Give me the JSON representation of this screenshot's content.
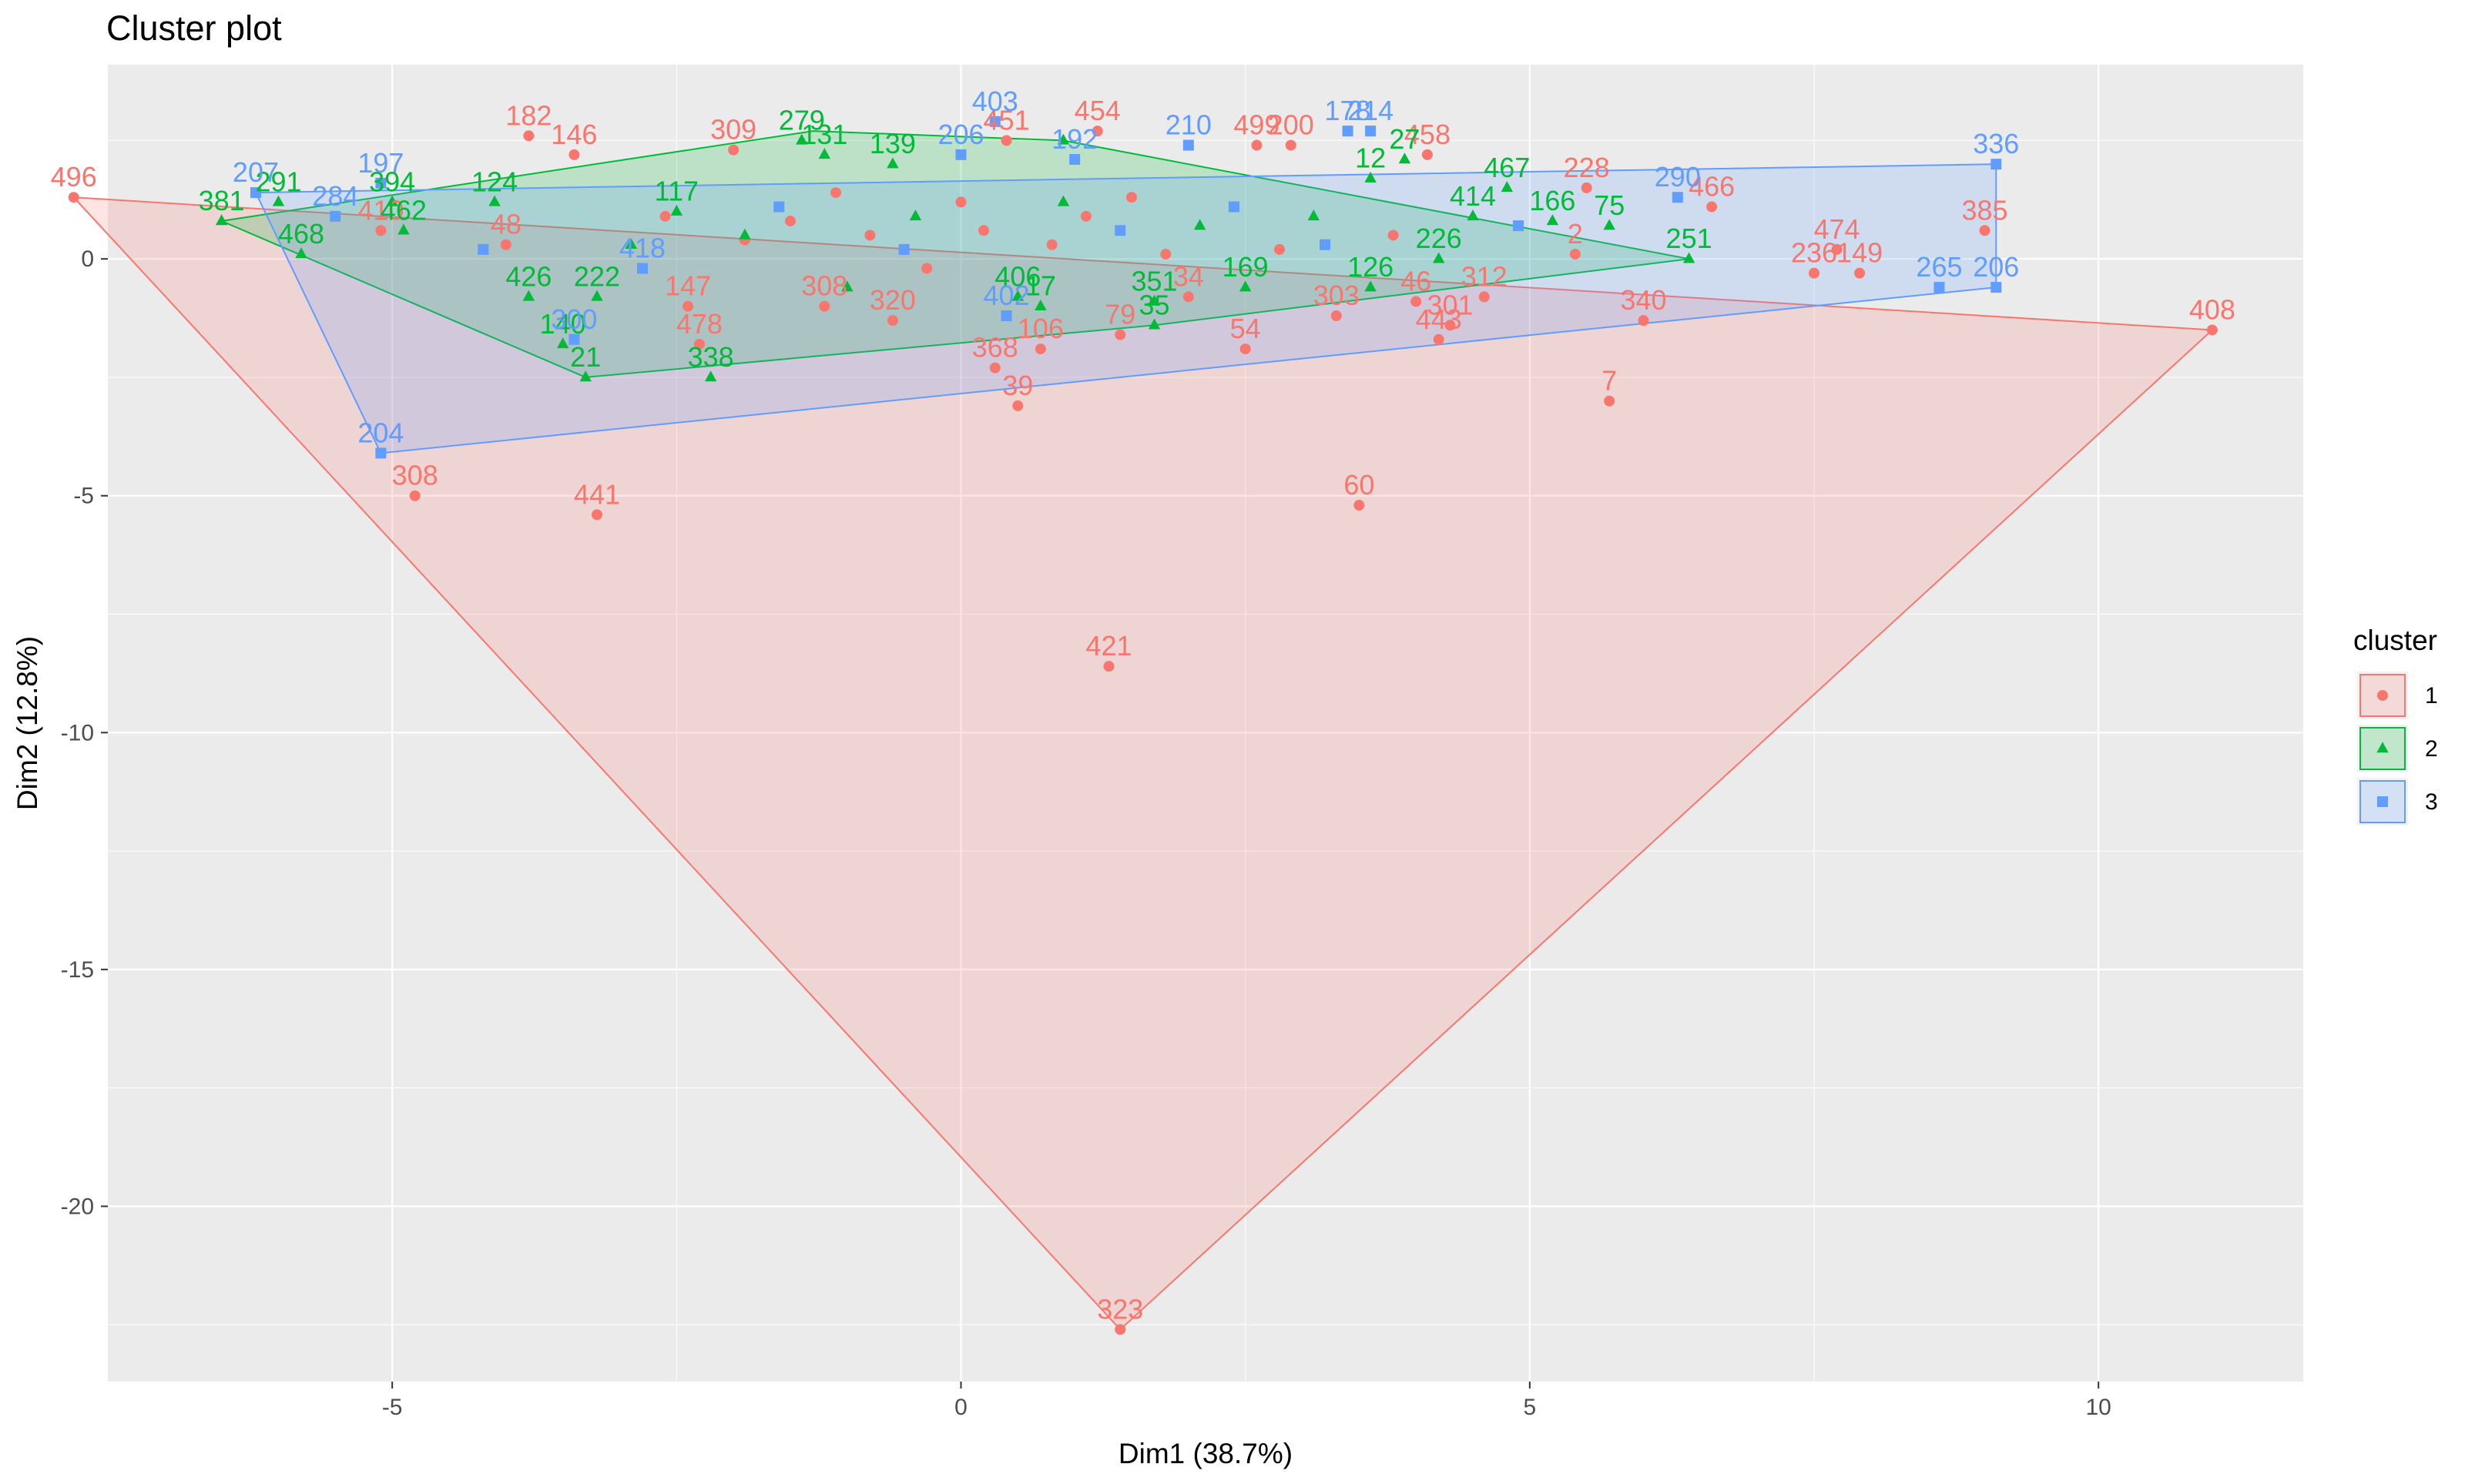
{
  "chart_data": {
    "type": "scatter",
    "title": "Cluster plot",
    "xlabel": "Dim1 (38.7%)",
    "ylabel": "Dim2 (12.8%)",
    "xlim": [
      -7.5,
      11.8
    ],
    "ylim": [
      -23.7,
      4.1
    ],
    "xticks": [
      -5,
      0,
      5,
      10
    ],
    "yticks": [
      0,
      -5,
      -10,
      -15,
      -20
    ],
    "legend": {
      "title": "cluster",
      "position": "right"
    },
    "series": [
      {
        "name": "1",
        "color": "#F8766D",
        "marker": "circle",
        "hull": [
          [
            -7.8,
            1.3
          ],
          [
            11.0,
            -1.5
          ],
          [
            1.4,
            -22.6
          ]
        ],
        "points": [
          {
            "x": -7.8,
            "y": 1.3,
            "label": "496"
          },
          {
            "x": -4.8,
            "y": -5.0,
            "label": "308"
          },
          {
            "x": -3.2,
            "y": -5.4,
            "label": "441"
          },
          {
            "x": 1.3,
            "y": -8.6,
            "label": "421"
          },
          {
            "x": 3.5,
            "y": -5.2,
            "label": "60"
          },
          {
            "x": 11.0,
            "y": -1.5,
            "label": "408"
          },
          {
            "x": 5.7,
            "y": -3.0,
            "label": "7"
          },
          {
            "x": 6.0,
            "y": -1.3,
            "label": "340"
          },
          {
            "x": 1.4,
            "y": -22.6,
            "label": "323"
          },
          {
            "x": 7.7,
            "y": 0.2,
            "label": "474"
          },
          {
            "x": 7.9,
            "y": -0.3,
            "label": "149"
          },
          {
            "x": 7.5,
            "y": -0.3,
            "label": "236"
          },
          {
            "x": 9.0,
            "y": 0.6,
            "label": "385"
          },
          {
            "x": 6.6,
            "y": 1.1,
            "label": "466"
          },
          {
            "x": 5.5,
            "y": 1.5,
            "label": "228"
          },
          {
            "x": 5.4,
            "y": 0.1,
            "label": "2"
          },
          {
            "x": 3.3,
            "y": -1.2,
            "label": "303"
          },
          {
            "x": 2.5,
            "y": -1.9,
            "label": "54"
          },
          {
            "x": 1.4,
            "y": -1.6,
            "label": "79"
          },
          {
            "x": 0.7,
            "y": -1.9,
            "label": "106"
          },
          {
            "x": 0.3,
            "y": -2.3,
            "label": "368"
          },
          {
            "x": 0.5,
            "y": -3.1,
            "label": "39"
          },
          {
            "x": 4.3,
            "y": -1.4,
            "label": "301"
          },
          {
            "x": 4.6,
            "y": -0.8,
            "label": "312"
          },
          {
            "x": 4.2,
            "y": -1.7,
            "label": "443"
          },
          {
            "x": 0.4,
            "y": 2.5,
            "label": "451"
          },
          {
            "x": 1.2,
            "y": 2.7,
            "label": "454"
          },
          {
            "x": -3.8,
            "y": 2.6,
            "label": "182"
          },
          {
            "x": -3.4,
            "y": 2.2,
            "label": "146"
          },
          {
            "x": -2.0,
            "y": 2.3,
            "label": "309"
          },
          {
            "x": 2.6,
            "y": 2.4,
            "label": "499"
          },
          {
            "x": 2.9,
            "y": 2.4,
            "label": "200"
          },
          {
            "x": 4.1,
            "y": 2.2,
            "label": "458"
          },
          {
            "x": -2.3,
            "y": -1.8,
            "label": "478"
          },
          {
            "x": -2.4,
            "y": -1.0,
            "label": "147"
          },
          {
            "x": -1.2,
            "y": -1.0,
            "label": "308"
          },
          {
            "x": -0.6,
            "y": -1.3,
            "label": "320"
          },
          {
            "x": 2.0,
            "y": -0.8,
            "label": "34"
          },
          {
            "x": 4.0,
            "y": -0.9,
            "label": "46"
          },
          {
            "x": -5.1,
            "y": 0.6,
            "label": "410"
          },
          {
            "x": -4.0,
            "y": 0.3,
            "label": "48"
          },
          {
            "x": -1.5,
            "y": 0.8,
            "label": ""
          },
          {
            "x": -0.8,
            "y": 0.5,
            "label": ""
          },
          {
            "x": 0.2,
            "y": 0.6,
            "label": ""
          },
          {
            "x": 0.8,
            "y": 0.3,
            "label": ""
          },
          {
            "x": 1.1,
            "y": 0.9,
            "label": ""
          },
          {
            "x": -1.9,
            "y": 0.4,
            "label": ""
          },
          {
            "x": 2.8,
            "y": 0.2,
            "label": ""
          },
          {
            "x": 3.8,
            "y": 0.5,
            "label": ""
          },
          {
            "x": -2.6,
            "y": 0.9,
            "label": ""
          },
          {
            "x": 0.0,
            "y": 1.2,
            "label": ""
          },
          {
            "x": 1.8,
            "y": 0.1,
            "label": ""
          },
          {
            "x": -0.3,
            "y": -0.2,
            "label": ""
          },
          {
            "x": -1.1,
            "y": 1.4,
            "label": ""
          },
          {
            "x": 1.5,
            "y": 1.3,
            "label": ""
          }
        ]
      },
      {
        "name": "2",
        "color": "#00BA38",
        "marker": "triangle",
        "hull": [
          [
            -6.5,
            0.8
          ],
          [
            -3.3,
            -2.5
          ],
          [
            1.7,
            -1.4
          ],
          [
            6.4,
            0.0
          ],
          [
            0.9,
            2.5
          ],
          [
            -1.3,
            2.7
          ]
        ],
        "points": [
          {
            "x": -6.5,
            "y": 0.8,
            "label": "381"
          },
          {
            "x": -6.0,
            "y": 1.2,
            "label": "291"
          },
          {
            "x": -5.8,
            "y": 0.1,
            "label": "468"
          },
          {
            "x": -4.9,
            "y": 0.6,
            "label": "462"
          },
          {
            "x": -5.0,
            "y": 1.2,
            "label": "394"
          },
          {
            "x": -3.8,
            "y": -0.8,
            "label": "426"
          },
          {
            "x": -3.5,
            "y": -1.8,
            "label": "140"
          },
          {
            "x": -3.2,
            "y": -0.8,
            "label": "222"
          },
          {
            "x": -3.3,
            "y": -2.5,
            "label": "21"
          },
          {
            "x": -2.2,
            "y": -2.5,
            "label": "338"
          },
          {
            "x": -4.1,
            "y": 1.2,
            "label": "124"
          },
          {
            "x": -2.5,
            "y": 1.0,
            "label": "117"
          },
          {
            "x": -1.4,
            "y": 2.5,
            "label": "279"
          },
          {
            "x": -1.2,
            "y": 2.2,
            "label": "131"
          },
          {
            "x": -0.6,
            "y": 2.0,
            "label": "139"
          },
          {
            "x": 0.5,
            "y": -0.8,
            "label": "406"
          },
          {
            "x": 0.7,
            "y": -1.0,
            "label": "17"
          },
          {
            "x": 1.7,
            "y": -0.9,
            "label": "351"
          },
          {
            "x": 1.7,
            "y": -1.4,
            "label": "35"
          },
          {
            "x": 2.5,
            "y": -0.6,
            "label": "169"
          },
          {
            "x": 3.6,
            "y": -0.6,
            "label": "126"
          },
          {
            "x": 3.6,
            "y": 1.7,
            "label": "12"
          },
          {
            "x": 3.9,
            "y": 2.1,
            "label": "27"
          },
          {
            "x": 4.8,
            "y": 1.5,
            "label": "467"
          },
          {
            "x": 5.7,
            "y": 0.7,
            "label": "75"
          },
          {
            "x": 6.4,
            "y": 0.0,
            "label": "251"
          },
          {
            "x": 5.2,
            "y": 0.8,
            "label": "166"
          },
          {
            "x": 4.5,
            "y": 0.9,
            "label": "414"
          },
          {
            "x": 4.2,
            "y": 0.0,
            "label": "226"
          },
          {
            "x": -1.9,
            "y": 0.5,
            "label": ""
          },
          {
            "x": -0.4,
            "y": 0.9,
            "label": ""
          },
          {
            "x": 0.9,
            "y": 1.2,
            "label": ""
          },
          {
            "x": 2.1,
            "y": 0.7,
            "label": ""
          },
          {
            "x": -2.9,
            "y": 0.3,
            "label": ""
          },
          {
            "x": 3.1,
            "y": 0.9,
            "label": ""
          },
          {
            "x": -1.0,
            "y": -0.6,
            "label": ""
          },
          {
            "x": 0.9,
            "y": 2.5,
            "label": ""
          }
        ]
      },
      {
        "name": "3",
        "color": "#619CFF",
        "marker": "square",
        "hull": [
          [
            -6.2,
            1.4
          ],
          [
            9.1,
            2.0
          ],
          [
            9.1,
            -0.6
          ],
          [
            -5.1,
            -4.1
          ]
        ],
        "points": [
          {
            "x": -6.2,
            "y": 1.4,
            "label": "207"
          },
          {
            "x": -5.1,
            "y": 1.6,
            "label": "197"
          },
          {
            "x": -5.5,
            "y": 0.9,
            "label": "284"
          },
          {
            "x": -5.1,
            "y": -4.1,
            "label": "204"
          },
          {
            "x": -3.4,
            "y": -1.7,
            "label": "300"
          },
          {
            "x": 0.3,
            "y": 2.9,
            "label": "403"
          },
          {
            "x": 1.0,
            "y": 2.1,
            "label": "192"
          },
          {
            "x": 2.0,
            "y": 2.4,
            "label": "210"
          },
          {
            "x": 3.4,
            "y": 2.7,
            "label": "178"
          },
          {
            "x": 3.6,
            "y": 2.7,
            "label": "214"
          },
          {
            "x": 6.3,
            "y": 1.3,
            "label": "290"
          },
          {
            "x": 9.1,
            "y": 2.0,
            "label": "336"
          },
          {
            "x": 8.6,
            "y": -0.6,
            "label": "265"
          },
          {
            "x": 9.1,
            "y": -0.6,
            "label": "206"
          },
          {
            "x": 0.0,
            "y": 2.2,
            "label": "206"
          },
          {
            "x": 0.4,
            "y": -1.2,
            "label": "402"
          },
          {
            "x": -2.8,
            "y": -0.2,
            "label": "418"
          },
          {
            "x": -0.5,
            "y": 0.2,
            "label": ""
          },
          {
            "x": 1.4,
            "y": 0.6,
            "label": ""
          },
          {
            "x": 2.4,
            "y": 1.1,
            "label": ""
          },
          {
            "x": -1.6,
            "y": 1.1,
            "label": ""
          },
          {
            "x": 3.2,
            "y": 0.3,
            "label": ""
          },
          {
            "x": 4.9,
            "y": 0.7,
            "label": ""
          },
          {
            "x": -4.2,
            "y": 0.2,
            "label": ""
          }
        ]
      }
    ]
  }
}
